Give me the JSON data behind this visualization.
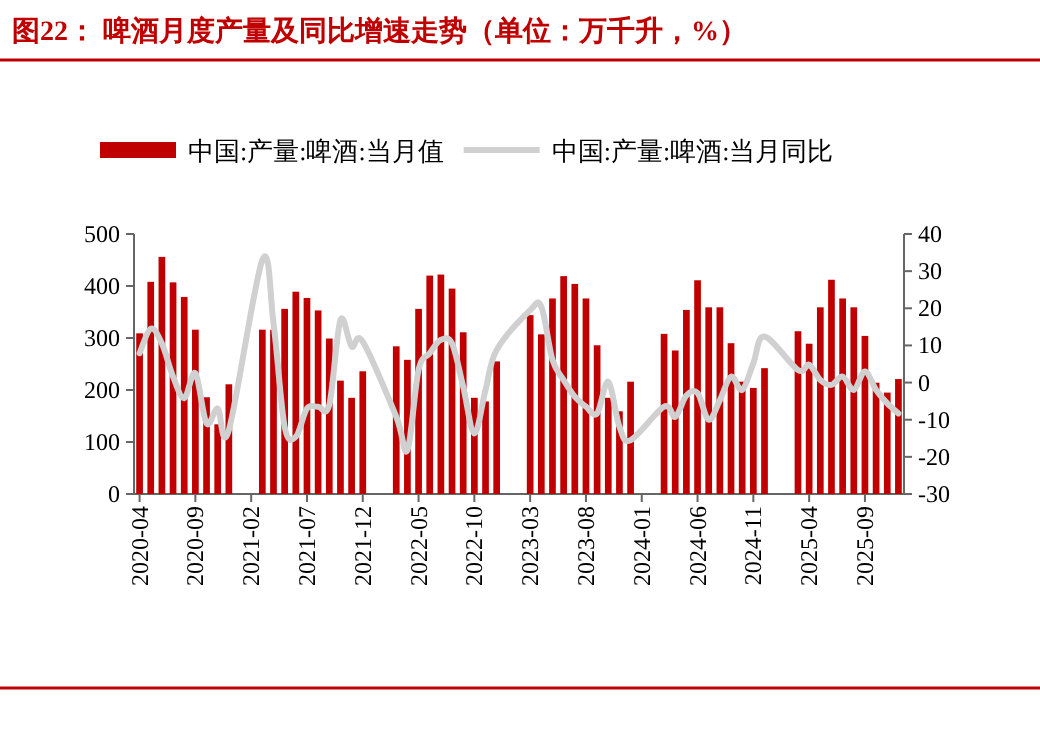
{
  "chart_data": {
    "type": "bar",
    "title": "图22：  啤酒月度产量及同比增速走势（单位：万千升，%）",
    "categories": [
      "2020-04",
      null,
      null,
      null,
      null,
      "2020-09",
      null,
      null,
      null,
      null,
      "2021-02",
      null,
      null,
      null,
      null,
      "2021-07",
      null,
      null,
      null,
      null,
      "2021-12",
      null,
      null,
      null,
      null,
      "2022-05",
      null,
      null,
      null,
      null,
      "2022-10",
      null,
      null,
      null,
      null,
      "2023-03",
      null,
      null,
      null,
      null,
      "2023-08",
      null,
      null,
      null,
      null,
      "2024-01",
      null,
      null,
      null,
      null,
      "2024-06",
      null,
      null,
      null,
      null,
      "2024-11",
      null,
      null,
      null,
      null,
      "2025-04",
      null,
      null,
      null,
      null,
      "2025-09",
      null,
      null,
      null
    ],
    "series": [
      {
        "name": "中国:产量:啤酒:当月值",
        "color": "#c00000",
        "values": [
          309,
          408,
          456,
          407,
          379,
          316,
          186,
          134,
          211,
          null,
          null,
          316,
          316,
          356,
          389,
          377,
          353,
          299,
          218,
          185,
          236,
          null,
          null,
          284,
          258,
          356,
          420,
          422,
          395,
          311,
          185,
          178,
          255,
          null,
          null,
          344,
          307,
          376,
          419,
          404,
          376,
          286,
          185,
          159,
          216,
          null,
          null,
          308,
          276,
          354,
          411,
          359,
          359,
          290,
          216,
          204,
          242,
          null,
          null,
          313,
          289,
          359,
          412,
          376,
          359,
          304,
          214,
          195,
          221
        ]
      },
      {
        "name": "中国:产量:啤酒:当月同比",
        "type": "line",
        "axis": "y2",
        "color": "#d0d0d0",
        "values": [
          7.9,
          14.5,
          10.5,
          1.6,
          -4.2,
          2.5,
          -11,
          -7,
          -12.8,
          null,
          null,
          33,
          16,
          -11.9,
          -14.6,
          -7,
          -6.5,
          -6,
          16.8,
          9.7,
          11,
          null,
          null,
          -9.2,
          -18.2,
          3.4,
          7.9,
          11.5,
          10.5,
          -1.1,
          -13.7,
          -2,
          8.8,
          null,
          null,
          19.5,
          20.4,
          6.1,
          0.7,
          -3.8,
          -6.5,
          -8.3,
          0.2,
          -11.9,
          -15.5,
          null,
          null,
          -6.5,
          -9.2,
          -3.5,
          -2.8,
          -10,
          -4.7,
          1.6,
          -2,
          5.2,
          12.4,
          null,
          null,
          3.4,
          4.8,
          0.7,
          -0.6,
          1.6,
          -2,
          3,
          -2,
          -5.6,
          -8.3
        ]
      }
    ],
    "ylim": [
      0,
      500
    ],
    "yticks": [
      0,
      100,
      200,
      300,
      400,
      500
    ],
    "y2lim": [
      -30,
      40
    ],
    "y2ticks": [
      -30,
      -20,
      -10,
      0,
      10,
      20,
      30,
      40
    ],
    "legend": "top",
    "grid": false
  }
}
